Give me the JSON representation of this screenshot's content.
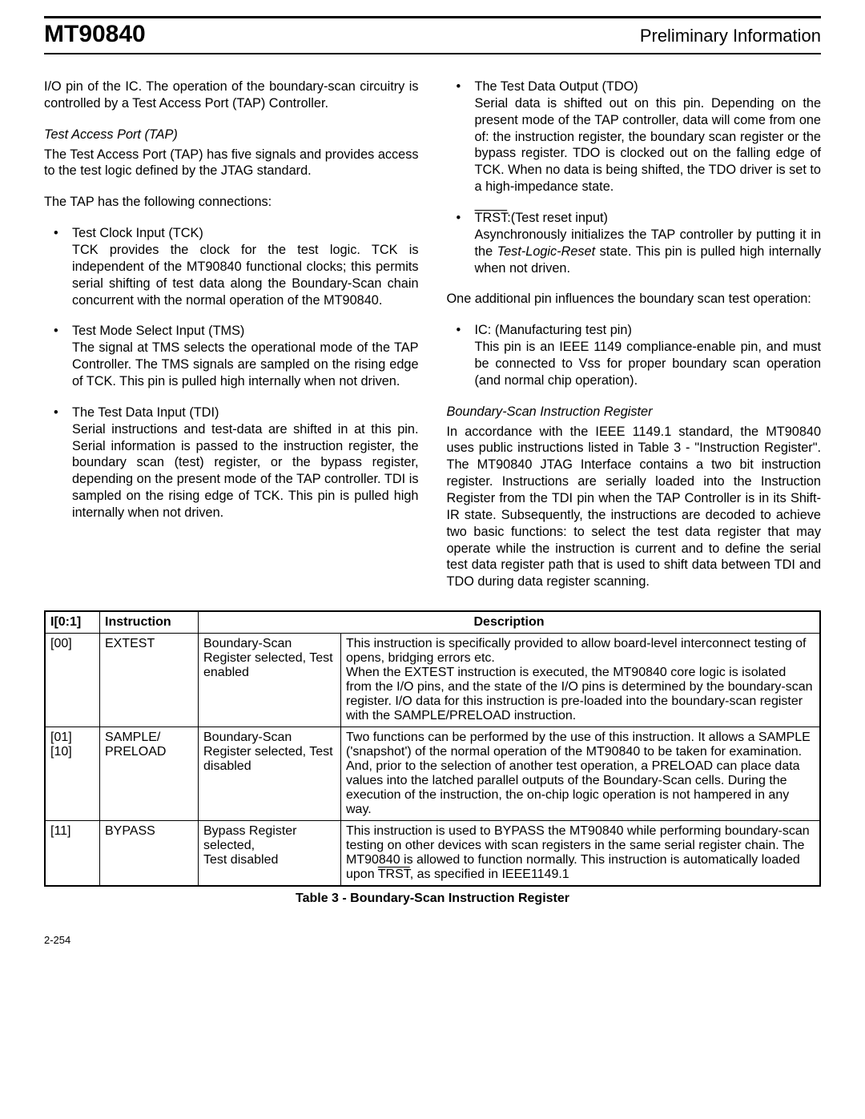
{
  "header": {
    "left": "MT90840",
    "right": "Preliminary Information"
  },
  "leftCol": {
    "intro": "I/O pin of the IC. The operation of the boundary-scan circuitry is controlled by a Test Access Port (TAP) Controller.",
    "tapHead": "Test Access Port (TAP)",
    "tapPara": "The Test Access Port (TAP) has five signals and provides access to the test logic defined by the JTAG standard.",
    "connPara": "The TAP has the following connections:",
    "b1Title": "Test Clock Input (TCK)",
    "b1Body": "TCK provides the clock for the test logic. TCK is independent of the MT90840 functional clocks; this permits serial shifting of test data along the Boundary-Scan chain concurrent with the normal operation of the MT90840.",
    "b2Title": "Test Mode Select Input (TMS)",
    "b2Body": "The signal at TMS selects the operational mode of the TAP Controller. The TMS signals are sampled on the rising edge of TCK. This pin is pulled high internally when not driven.",
    "b3Title": "The Test Data Input (TDI)",
    "b3Body": "Serial instructions and test-data are shifted in at this pin. Serial information is passed to the instruction register, the boundary scan (test) register, or the bypass register, depending on the present mode of the TAP controller. TDI is sampled on the rising edge of TCK. This pin is pulled high internally when not driven."
  },
  "rightCol": {
    "b4Title": "The Test Data Output (TDO)",
    "b4Body": "Serial data is shifted out on this pin. Depending on the present mode of the TAP controller, data will come from one of: the instruction register, the boundary scan register or the bypass register. TDO is clocked out on the falling edge of TCK. When no data is being shifted, the TDO driver is set to a high-impedance state.",
    "b5TitlePre": "TRST",
    "b5TitlePost": ":(Test reset input)",
    "b5Body": "Asynchronously initializes the TAP controller by putting it in the Test-Logic-Reset state. This pin is pulled high internally when not driven.",
    "addPara": "One additional pin influences the boundary scan test operation:",
    "b6Title": "IC: (Manufacturing test pin)",
    "b6Body": "This pin is an IEEE 1149 compliance-enable pin, and must be connected to Vss for proper boundary scan operation (and normal chip operation).",
    "bsHead": "Boundary-Scan Instruction Register",
    "bsPara": "In accordance with the IEEE 1149.1 standard, the MT90840 uses public instructions listed in Table 3 - \"Instruction Register\". The MT90840 JTAG Interface contains a two bit instruction register. Instructions are serially loaded into the Instruction Register from the TDI pin when the TAP Controller is in its Shift-IR state. Subsequently, the instructions are decoded to achieve two basic functions: to select the test data register that may operate while the instruction is current and to define the serial test data register path that is used to shift data between TDI and TDO during data register scanning."
  },
  "table": {
    "headers": {
      "c0": "I[0:1]",
      "c1": "Instruction",
      "c2": "Description"
    },
    "rows": [
      {
        "code": "[00]",
        "instr": "EXTEST",
        "sel": "Boundary-Scan Register selected, Test enabled",
        "desc": "This instruction is specifically provided to allow board-level interconnect testing of opens, bridging errors etc.\nWhen the EXTEST instruction is executed, the MT90840 core logic is isolated from the I/O pins, and the state of the I/O pins is determined by the boundary-scan register. I/O data for this instruction is pre-loaded into the boundary-scan register with the SAMPLE/PRELOAD instruction."
      },
      {
        "code": "[01] [10]",
        "instr": "SAMPLE/ PRELOAD",
        "sel": "Boundary-Scan Register selected, Test disabled",
        "desc": "Two functions can be performed by the use of this instruction. It allows a SAMPLE ('snapshot') of the normal operation of the MT90840 to be taken for examination. And, prior to the selection of another test operation, a PRELOAD can place data values into the latched parallel outputs of the Boundary-Scan cells. During the execution of the instruction, the on-chip logic operation is not hampered in any way."
      },
      {
        "code": "[11]",
        "instr": "BYPASS",
        "sel": "Bypass Register selected,\nTest disabled",
        "descPre": "This instruction is used to BYPASS the MT90840 while performing boundary-scan testing on other devices with scan registers in the same serial register chain. The MT90840 is allowed to function normally. This instruction is automatically loaded upon ",
        "descOver": "TRST",
        "descPost": ", as specified in IEEE1149.1"
      }
    ],
    "caption": "Table 3 - Boundary-Scan Instruction Register"
  },
  "footer": "2-254"
}
